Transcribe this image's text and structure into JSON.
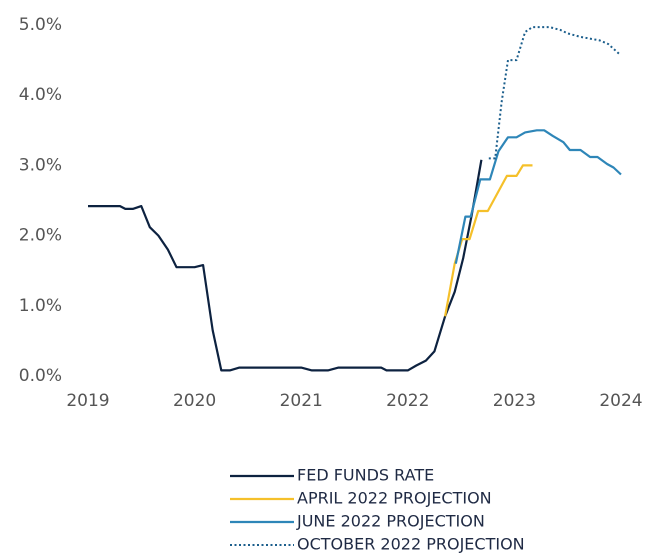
{
  "chart_data": {
    "type": "line",
    "xlim": [
      2019,
      2024
    ],
    "xticks": [
      2019,
      2020,
      2021,
      2022,
      2023,
      2024
    ],
    "ylim": [
      0,
      5
    ],
    "yticks": [
      {
        "value": 0,
        "label": "0.0%"
      },
      {
        "value": 1,
        "label": "1.0%"
      },
      {
        "value": 2,
        "label": "2.0%"
      },
      {
        "value": 3,
        "label": "3.0%"
      },
      {
        "value": 4,
        "label": "4.0%"
      },
      {
        "value": 5,
        "label": "5.0%"
      }
    ],
    "legend": "bottom",
    "series": [
      {
        "name": "FED FUNDS RATE",
        "color": "#0d2240",
        "style": "solid",
        "x": [
          2019.0,
          2019.3,
          2019.35,
          2019.42,
          2019.5,
          2019.58,
          2019.66,
          2019.75,
          2019.83,
          2020.0,
          2020.08,
          2020.17,
          2020.25,
          2020.33,
          2020.42,
          2021.0,
          2021.1,
          2021.25,
          2021.35,
          2021.75,
          2021.8,
          2021.9,
          2022.0,
          2022.08,
          2022.17,
          2022.25,
          2022.35,
          2022.44,
          2022.52,
          2022.6,
          2022.69
        ],
        "values": [
          2.42,
          2.42,
          2.38,
          2.38,
          2.42,
          2.12,
          2.0,
          1.8,
          1.55,
          1.55,
          1.58,
          0.65,
          0.08,
          0.08,
          0.12,
          0.12,
          0.08,
          0.08,
          0.12,
          0.12,
          0.08,
          0.08,
          0.08,
          0.15,
          0.22,
          0.35,
          0.85,
          1.2,
          1.68,
          2.3,
          3.08
        ]
      },
      {
        "name": "APRIL 2022 PROJECTION",
        "color": "#f5c02a",
        "style": "solid",
        "x": [
          2022.35,
          2022.44,
          2022.51,
          2022.58,
          2022.66,
          2022.75,
          2022.84,
          2022.93,
          2023.02,
          2023.08,
          2023.17
        ],
        "values": [
          0.85,
          1.6,
          1.95,
          1.95,
          2.35,
          2.35,
          2.6,
          2.85,
          2.85,
          3.0,
          3.0
        ]
      },
      {
        "name": "JUNE 2022 PROJECTION",
        "color": "#2e86b8",
        "style": "solid",
        "x": [
          2022.45,
          2022.54,
          2022.59,
          2022.68,
          2022.77,
          2022.85,
          2022.94,
          2023.02,
          2023.1,
          2023.21,
          2023.28,
          2023.36,
          2023.46,
          2023.52,
          2023.62,
          2023.71,
          2023.78,
          2023.87,
          2023.93,
          2024.0
        ],
        "values": [
          1.6,
          2.27,
          2.27,
          2.8,
          2.8,
          3.2,
          3.4,
          3.4,
          3.47,
          3.5,
          3.5,
          3.42,
          3.33,
          3.22,
          3.22,
          3.12,
          3.12,
          3.02,
          2.97,
          2.87
        ]
      },
      {
        "name": "OCTOBER 2022 PROJECTION",
        "color": "#1b5e8c",
        "style": "dotted",
        "x": [
          2022.76,
          2022.82,
          2022.88,
          2022.94,
          2023.02,
          2023.1,
          2023.17,
          2023.33,
          2023.43,
          2023.5,
          2023.62,
          2023.8,
          2023.88,
          2023.99
        ],
        "values": [
          3.1,
          3.1,
          3.9,
          4.5,
          4.5,
          4.9,
          4.97,
          4.97,
          4.93,
          4.88,
          4.83,
          4.78,
          4.73,
          4.58
        ]
      }
    ]
  }
}
